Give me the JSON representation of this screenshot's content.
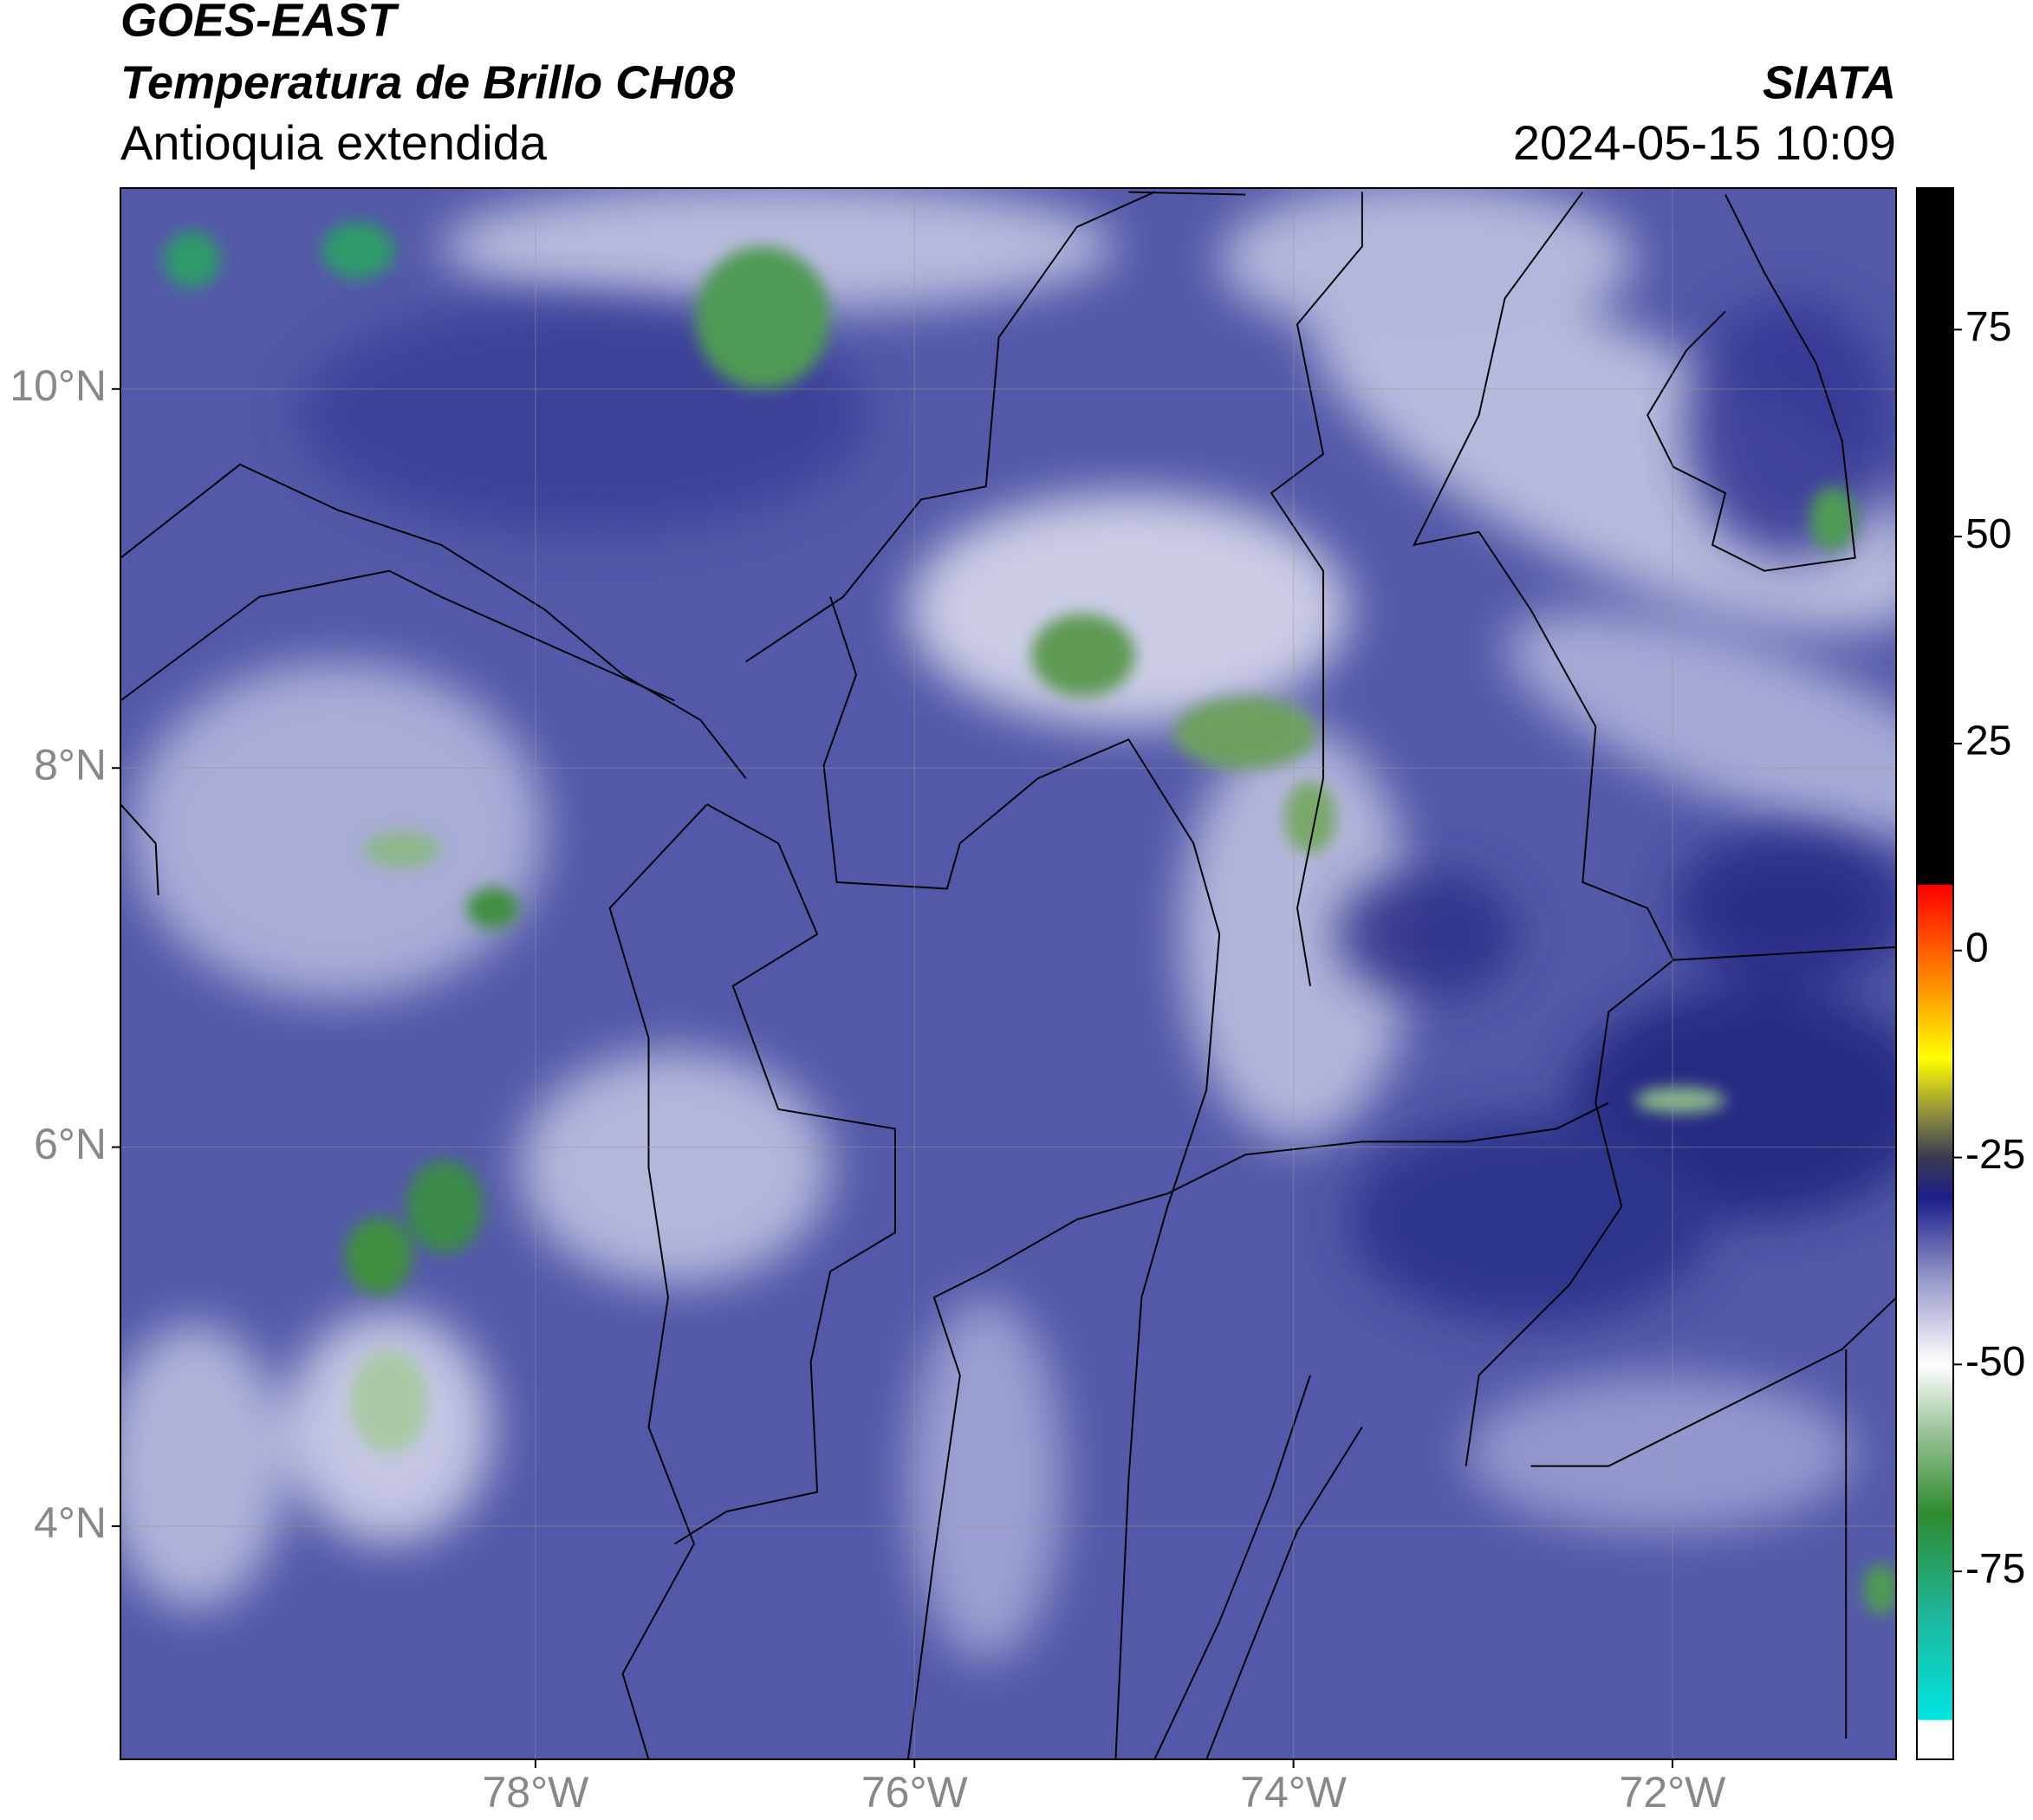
{
  "header": {
    "satellite": "GOES-EAST",
    "product": "Temperatura de Brillo CH08",
    "region": "Antioquia extendida",
    "source": "SIATA",
    "timestamp": "2024-05-15 10:09"
  },
  "map": {
    "xlim": [
      -80.19,
      -70.82
    ],
    "ylim": [
      2.77,
      11.06
    ],
    "xticks": [
      {
        "value": -78,
        "label": "78°W"
      },
      {
        "value": -76,
        "label": "76°W"
      },
      {
        "value": -74,
        "label": "74°W"
      },
      {
        "value": -72,
        "label": "72°W"
      }
    ],
    "yticks": [
      {
        "value": 10,
        "label": "10°N"
      },
      {
        "value": 8,
        "label": "8°N"
      },
      {
        "value": 6,
        "label": "6°N"
      },
      {
        "value": 4,
        "label": "4°N"
      }
    ],
    "grid": true
  },
  "colorbar": {
    "lim": [
      -97.7,
      92.1
    ],
    "ticks": [
      75,
      50,
      25,
      0,
      -25,
      -50,
      -75
    ],
    "stops": [
      {
        "value": -93,
        "color": "#ffffff"
      },
      {
        "value": -92.9,
        "color": "#00e5e0"
      },
      {
        "value": -80,
        "color": "#1fb59a"
      },
      {
        "value": -68,
        "color": "#2e8b2e"
      },
      {
        "value": -58,
        "color": "#9cc49a"
      },
      {
        "value": -50,
        "color": "#ffffff"
      },
      {
        "value": -40,
        "color": "#9a9ccc"
      },
      {
        "value": -30,
        "color": "#1c1f8a"
      },
      {
        "value": -25,
        "color": "#3a3a50"
      },
      {
        "value": -20,
        "color": "#8a8a40"
      },
      {
        "value": -13,
        "color": "#ffff00"
      },
      {
        "value": -5,
        "color": "#ff9900"
      },
      {
        "value": 7.9,
        "color": "#ff0000"
      },
      {
        "value": 8,
        "color": "#000000"
      }
    ]
  }
}
